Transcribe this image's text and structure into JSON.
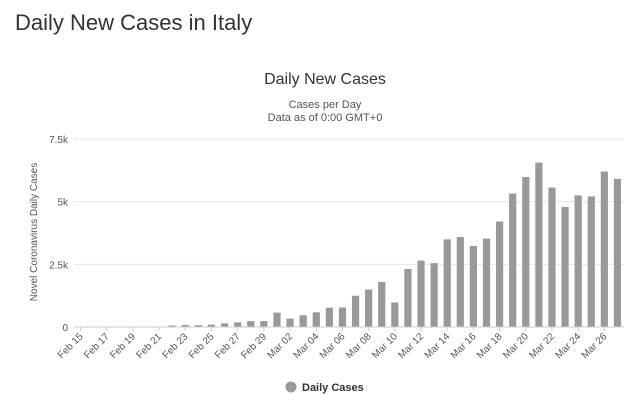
{
  "page": {
    "heading": "Daily New Cases in Italy"
  },
  "chart_data": {
    "type": "bar",
    "title": "Daily New Cases",
    "subtitle_lines": [
      "Cases per Day",
      "Data as of 0:00 GMT+0"
    ],
    "xlabel": "",
    "ylabel": "Novel Coronavirus Daily Cases",
    "ylim": [
      0,
      7500
    ],
    "yticks": [
      0,
      2500,
      5000,
      7500
    ],
    "ytick_labels": [
      "0",
      "2.5k",
      "5k",
      "7.5k"
    ],
    "grid": true,
    "legend_position": "bottom-center",
    "bar_color": "#999999",
    "x_tick_labels": [
      "Feb 15",
      "Feb 17",
      "Feb 19",
      "Feb 21",
      "Feb 23",
      "Feb 25",
      "Feb 27",
      "Feb 29",
      "Mar 02",
      "Mar 04",
      "Mar 06",
      "Mar 08",
      "Mar 10",
      "Mar 12",
      "Mar 14",
      "Mar 16",
      "Mar 18",
      "Mar 20",
      "Mar 22",
      "Mar 24",
      "Mar 26"
    ],
    "categories": [
      "Feb 15",
      "Feb 16",
      "Feb 17",
      "Feb 18",
      "Feb 19",
      "Feb 20",
      "Feb 21",
      "Feb 22",
      "Feb 23",
      "Feb 24",
      "Feb 25",
      "Feb 26",
      "Feb 27",
      "Feb 28",
      "Feb 29",
      "Mar 01",
      "Mar 02",
      "Mar 03",
      "Mar 04",
      "Mar 05",
      "Mar 06",
      "Mar 07",
      "Mar 08",
      "Mar 09",
      "Mar 10",
      "Mar 11",
      "Mar 12",
      "Mar 13",
      "Mar 14",
      "Mar 15",
      "Mar 16",
      "Mar 17",
      "Mar 18",
      "Mar 19",
      "Mar 20",
      "Mar 21",
      "Mar 22",
      "Mar 23",
      "Mar 24",
      "Mar 25",
      "Mar 26",
      "Mar 27"
    ],
    "series": [
      {
        "name": "Daily Cases",
        "values": [
          0,
          0,
          0,
          0,
          0,
          0,
          17,
          58,
          78,
          72,
          94,
          147,
          185,
          234,
          239,
          573,
          335,
          466,
          587,
          769,
          778,
          1247,
          1492,
          1797,
          977,
          2313,
          2651,
          2547,
          3497,
          3590,
          3233,
          3526,
          4207,
          5322,
          5986,
          6557,
          5560,
          4789,
          5249,
          5210,
          6203,
          5909
        ]
      }
    ]
  }
}
